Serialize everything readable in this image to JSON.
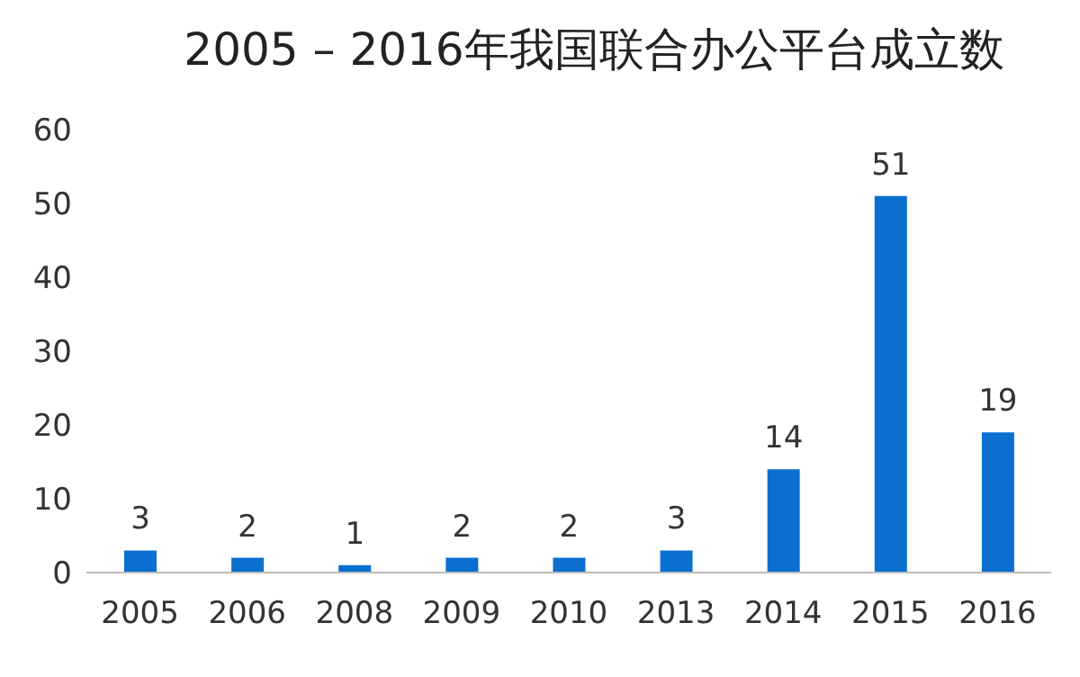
{
  "chart_data": {
    "type": "bar",
    "title": "2005 – 2016年我国联合办公平台成立数",
    "categories": [
      "2005",
      "2006",
      "2008",
      "2009",
      "2010",
      "2013",
      "2014",
      "2015",
      "2016"
    ],
    "values": [
      3,
      2,
      1,
      2,
      2,
      3,
      14,
      51,
      19
    ],
    "color": "#0b6fd0",
    "ylim": [
      0,
      60
    ],
    "yticks": [
      0,
      10,
      20,
      30,
      40,
      50,
      60
    ],
    "data_labels": true
  }
}
